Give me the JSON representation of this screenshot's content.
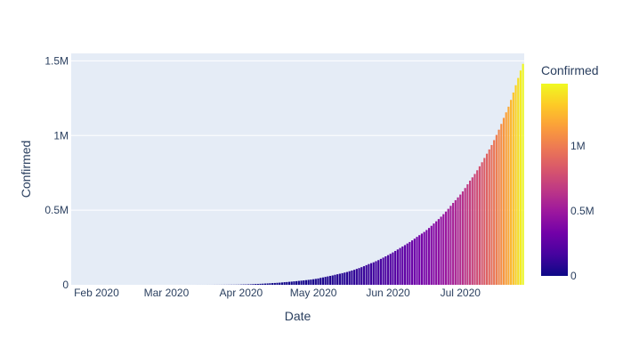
{
  "chart_data": {
    "type": "bar",
    "xlabel": "Date",
    "ylabel": "Confirmed",
    "x_range": [
      "2020-01-22",
      "2020-07-27"
    ],
    "ylim": [
      0,
      1550000
    ],
    "y_ticks": [
      {
        "value": 0,
        "label": "0"
      },
      {
        "value": 500000,
        "label": "0.5M"
      },
      {
        "value": 1000000,
        "label": "1M"
      },
      {
        "value": 1500000,
        "label": "1.5M"
      }
    ],
    "x_ticks": [
      {
        "date": "2020-02-01",
        "label": "Feb 2020"
      },
      {
        "date": "2020-03-01",
        "label": "Mar 2020"
      },
      {
        "date": "2020-04-01",
        "label": "Apr 2020"
      },
      {
        "date": "2020-05-01",
        "label": "May 2020"
      },
      {
        "date": "2020-06-01",
        "label": "Jun 2020"
      },
      {
        "date": "2020-07-01",
        "label": "Jul 2020"
      }
    ],
    "color_by": "Confirmed",
    "colorbar": {
      "title": "Confirmed",
      "range": [
        0,
        1480000
      ],
      "ticks": [
        {
          "value": 0,
          "label": "0"
        },
        {
          "value": 500000,
          "label": "0.5M"
        },
        {
          "value": 1000000,
          "label": "1M"
        }
      ],
      "colorscale": [
        "#0d0887",
        "#46039f",
        "#7201a8",
        "#9c179e",
        "#bd3786",
        "#d8576b",
        "#ed7953",
        "#fb9f3a",
        "#fdca26",
        "#f0f921"
      ]
    },
    "grid": true,
    "plot_background": "#e5ecf6",
    "series": [
      {
        "x": [
          "2020-01-22",
          "2020-01-23",
          "2020-01-24",
          "2020-01-25",
          "2020-01-26",
          "2020-01-27",
          "2020-01-28",
          "2020-01-29",
          "2020-01-30",
          "2020-01-31",
          "2020-02-01",
          "2020-02-02",
          "2020-02-03",
          "2020-02-04",
          "2020-02-05",
          "2020-02-06",
          "2020-02-07",
          "2020-02-08",
          "2020-02-09",
          "2020-02-10",
          "2020-02-11",
          "2020-02-12",
          "2020-02-13",
          "2020-02-14",
          "2020-02-15",
          "2020-02-16",
          "2020-02-17",
          "2020-02-18",
          "2020-02-19",
          "2020-02-20",
          "2020-02-21",
          "2020-02-22",
          "2020-02-23",
          "2020-02-24",
          "2020-02-25",
          "2020-02-26",
          "2020-02-27",
          "2020-02-28",
          "2020-02-29",
          "2020-03-01",
          "2020-03-02",
          "2020-03-03",
          "2020-03-04",
          "2020-03-05",
          "2020-03-06",
          "2020-03-07",
          "2020-03-08",
          "2020-03-09",
          "2020-03-10",
          "2020-03-11",
          "2020-03-12",
          "2020-03-13",
          "2020-03-14",
          "2020-03-15",
          "2020-03-16",
          "2020-03-17",
          "2020-03-18",
          "2020-03-19",
          "2020-03-20",
          "2020-03-21",
          "2020-03-22",
          "2020-03-23",
          "2020-03-24",
          "2020-03-25",
          "2020-03-26",
          "2020-03-27",
          "2020-03-28",
          "2020-03-29",
          "2020-03-30",
          "2020-03-31",
          "2020-04-01",
          "2020-04-02",
          "2020-04-03",
          "2020-04-04",
          "2020-04-05",
          "2020-04-06",
          "2020-04-07",
          "2020-04-08",
          "2020-04-09",
          "2020-04-10",
          "2020-04-11",
          "2020-04-12",
          "2020-04-13",
          "2020-04-14",
          "2020-04-15",
          "2020-04-16",
          "2020-04-17",
          "2020-04-18",
          "2020-04-19",
          "2020-04-20",
          "2020-04-21",
          "2020-04-22",
          "2020-04-23",
          "2020-04-24",
          "2020-04-25",
          "2020-04-26",
          "2020-04-27",
          "2020-04-28",
          "2020-04-29",
          "2020-04-30",
          "2020-05-01",
          "2020-05-02",
          "2020-05-03",
          "2020-05-04",
          "2020-05-05",
          "2020-05-06",
          "2020-05-07",
          "2020-05-08",
          "2020-05-09",
          "2020-05-10",
          "2020-05-11",
          "2020-05-12",
          "2020-05-13",
          "2020-05-14",
          "2020-05-15",
          "2020-05-16",
          "2020-05-17",
          "2020-05-18",
          "2020-05-19",
          "2020-05-20",
          "2020-05-21",
          "2020-05-22",
          "2020-05-23",
          "2020-05-24",
          "2020-05-25",
          "2020-05-26",
          "2020-05-27",
          "2020-05-28",
          "2020-05-29",
          "2020-05-30",
          "2020-05-31",
          "2020-06-01",
          "2020-06-02",
          "2020-06-03",
          "2020-06-04",
          "2020-06-05",
          "2020-06-06",
          "2020-06-07",
          "2020-06-08",
          "2020-06-09",
          "2020-06-10",
          "2020-06-11",
          "2020-06-12",
          "2020-06-13",
          "2020-06-14",
          "2020-06-15",
          "2020-06-16",
          "2020-06-17",
          "2020-06-18",
          "2020-06-19",
          "2020-06-20",
          "2020-06-21",
          "2020-06-22",
          "2020-06-23",
          "2020-06-24",
          "2020-06-25",
          "2020-06-26",
          "2020-06-27",
          "2020-06-28",
          "2020-06-29",
          "2020-06-30",
          "2020-07-01",
          "2020-07-02",
          "2020-07-03",
          "2020-07-04",
          "2020-07-05",
          "2020-07-06",
          "2020-07-07",
          "2020-07-08",
          "2020-07-09",
          "2020-07-10",
          "2020-07-11",
          "2020-07-12",
          "2020-07-13",
          "2020-07-14",
          "2020-07-15",
          "2020-07-16",
          "2020-07-17",
          "2020-07-18",
          "2020-07-19",
          "2020-07-20",
          "2020-07-21",
          "2020-07-22",
          "2020-07-23",
          "2020-07-24",
          "2020-07-25",
          "2020-07-26",
          "2020-07-27"
        ],
        "y": [
          0,
          0,
          0,
          0,
          0,
          0,
          0,
          0,
          1,
          1,
          1,
          2,
          3,
          3,
          3,
          3,
          3,
          3,
          3,
          3,
          3,
          3,
          3,
          3,
          3,
          3,
          3,
          3,
          3,
          3,
          3,
          3,
          3,
          3,
          3,
          3,
          3,
          3,
          3,
          3,
          5,
          5,
          28,
          30,
          31,
          34,
          39,
          43,
          56,
          62,
          73,
          82,
          102,
          113,
          119,
          142,
          156,
          194,
          244,
          330,
          396,
          499,
          536,
          657,
          727,
          887,
          987,
          1024,
          1251,
          1397,
          1998,
          2543,
          2567,
          3082,
          3588,
          4778,
          5311,
          5916,
          6725,
          7598,
          8446,
          9205,
          10453,
          11487,
          12322,
          13430,
          14352,
          15722,
          17615,
          18539,
          20080,
          21370,
          23077,
          24530,
          26283,
          27890,
          29451,
          31324,
          33062,
          34863,
          37257,
          39699,
          42505,
          46437,
          49400,
          52987,
          56351,
          59695,
          62808,
          67161,
          70768,
          74292,
          78055,
          81997,
          85784,
          90927,
          95698,
          100328,
          106475,
          112028,
          118226,
          124794,
          131868,
          138845,
          144950,
          150793,
          158086,
          165386,
          173763,
          182143,
          190535,
          198706,
          207615,
          216919,
          226770,
          236657,
          246628,
          256611,
          265928,
          276583,
          286579,
          297535,
          308993,
          320922,
          332424,
          343091,
          354065,
          366946,
          380532,
          395048,
          410461,
          425282,
          440215,
          456183,
          473105,
          490401,
          508953,
          528859,
          548318,
          566840,
          585481,
          604641,
          625544,
          648315,
          673165,
          697413,
          719665,
          742417,
          767296,
          793802,
          820916,
          849553,
          878254,
          906752,
          936181,
          968876,
          1003832,
          1039084,
          1077618,
          1118043,
          1155191,
          1193078,
          1238635,
          1287945,
          1337022,
          1385522,
          1435453,
          1480073
        ]
      }
    ]
  }
}
